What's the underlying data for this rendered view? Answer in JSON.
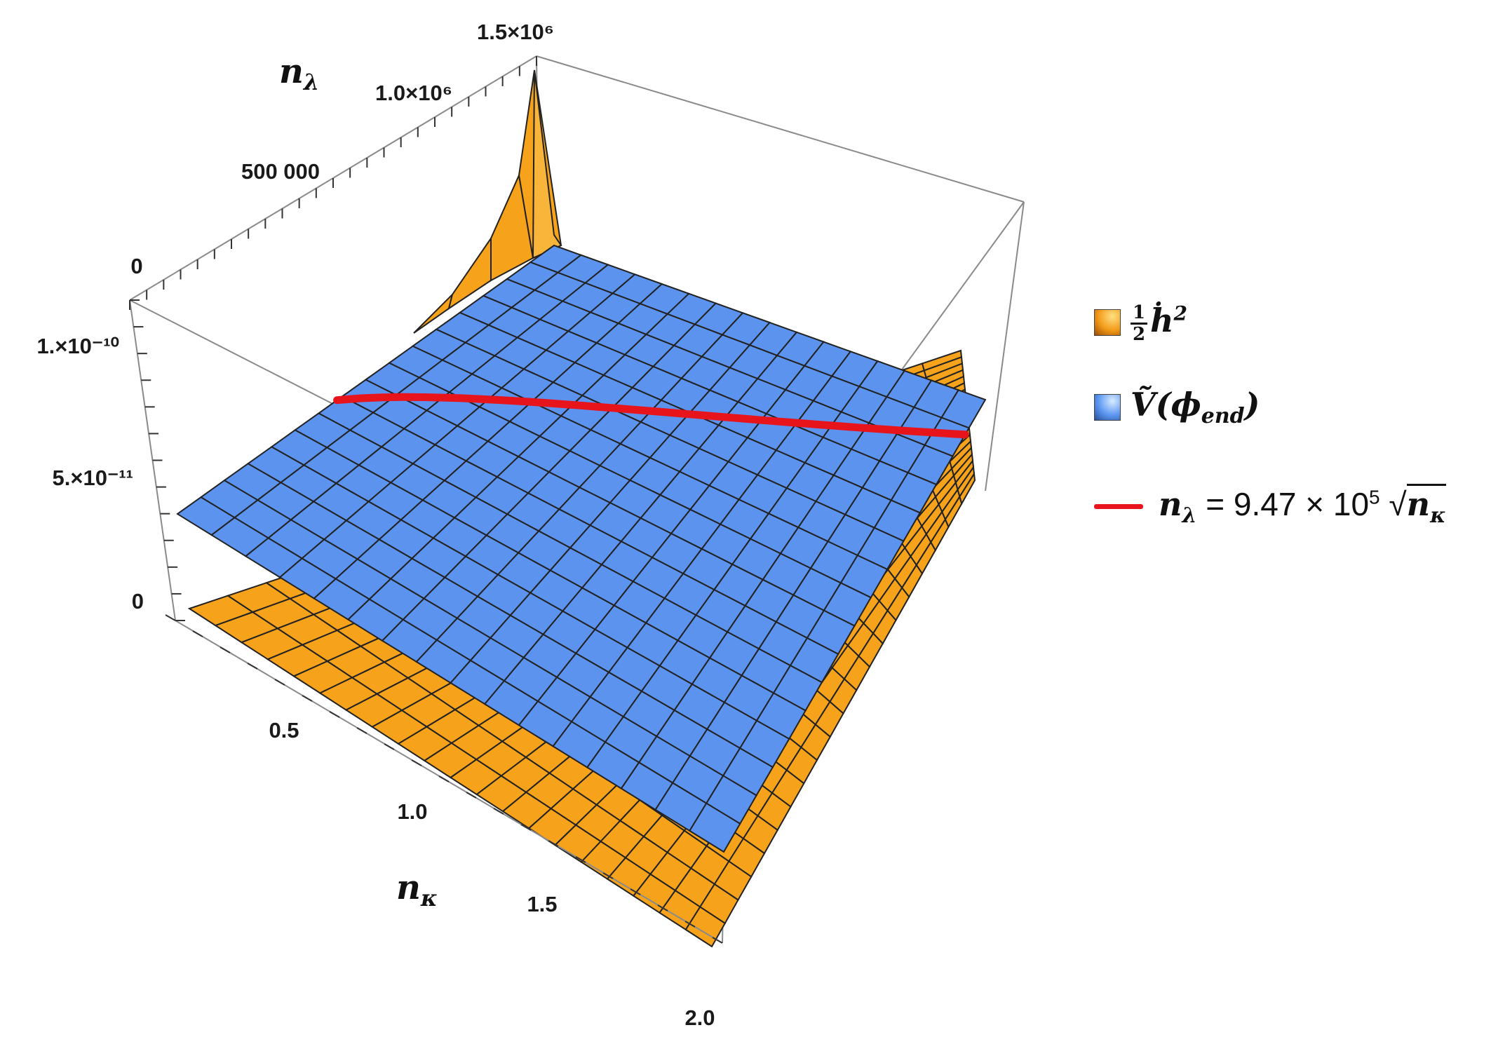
{
  "chart_data": {
    "type": "surface3d",
    "x_axis": {
      "label": "n",
      "label_sub": "κ",
      "ticks": [
        "0.5",
        "1.0",
        "1.5",
        "2.0"
      ],
      "range": [
        0,
        2
      ]
    },
    "y_axis": {
      "label": "n",
      "label_sub": "λ",
      "ticks": [
        "0",
        "500 000",
        "1.0×10⁶",
        "1.5×10⁶"
      ],
      "range": [
        0,
        1500000
      ]
    },
    "z_axis": {
      "ticks": [
        "0",
        "5.×10⁻¹¹",
        "1.×10⁻¹⁰"
      ],
      "range": [
        0,
        1.2e-10
      ]
    },
    "series": [
      {
        "name_prefix": "1",
        "name_denominator": "2",
        "name_main": "ḣ",
        "name_sup": "2",
        "color": "#f7a21b",
        "kind": "surface"
      },
      {
        "name_main": "Ṽ(ϕ",
        "name_sub": "end",
        "name_suffix": ")",
        "color": "#5b93ef",
        "kind": "surface"
      },
      {
        "name_lhs": "n",
        "name_lhs_sub": "λ",
        "name_equals": " = 9.47 × 10",
        "name_exp": "5",
        "name_root": "√",
        "name_arg": "n",
        "name_arg_sub": "κ",
        "color": "#e8141c",
        "kind": "curve",
        "coefficient": 947000,
        "x": [
          0.1,
          0.5,
          1.0,
          1.5,
          2.0
        ],
        "y": [
          299468,
          669631,
          947000,
          1159830,
          1339262
        ]
      }
    ],
    "legend": "right",
    "grid": false
  },
  "colors": {
    "orange": "#f7a21b",
    "blue": "#5b93ef",
    "red": "#e8141c",
    "mesh": "#222222",
    "box": "#8a8a8a"
  }
}
